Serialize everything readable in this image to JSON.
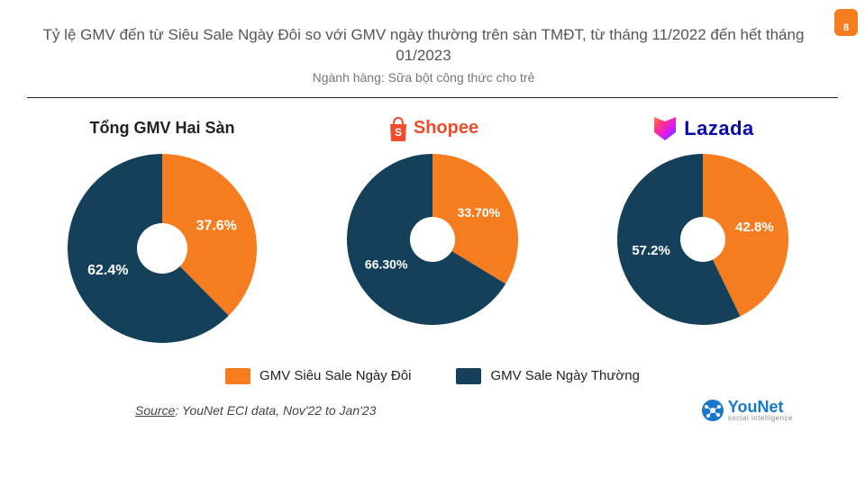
{
  "page_number": "8",
  "badge_bg": "#f57c1f",
  "title": "Tỷ lệ GMV đến từ Siêu Sale Ngày Đôi so với GMV ngày thường trên sàn TMĐT, từ tháng 11/2022 đến hết tháng 01/2023",
  "subtitle": "Ngành hàng: Sữa bột công thức cho trẻ",
  "colors": {
    "segment_a": "#f57c1f",
    "segment_b": "#14405a",
    "inner_hole": "#ffffff",
    "label_text": "#ffffff"
  },
  "charts": [
    {
      "kind": "text_header",
      "header_text": "Tổng GMV Hai Sàn",
      "radius": 105,
      "inner_radius": 28,
      "slices": [
        {
          "value": 37.6,
          "label": "37.6%",
          "color_key": "segment_a",
          "label_fontsize": 16
        },
        {
          "value": 62.4,
          "label": "62.4%",
          "color_key": "segment_b",
          "label_fontsize": 16
        }
      ]
    },
    {
      "kind": "shopee_header",
      "header_text": "Shopee",
      "radius": 95,
      "inner_radius": 25,
      "slices": [
        {
          "value": 33.7,
          "label": "33.70%",
          "color_key": "segment_a",
          "label_fontsize": 14
        },
        {
          "value": 66.3,
          "label": "66.30%",
          "color_key": "segment_b",
          "label_fontsize": 14
        }
      ]
    },
    {
      "kind": "lazada_header",
      "header_text": "Lazada",
      "radius": 95,
      "inner_radius": 25,
      "slices": [
        {
          "value": 42.8,
          "label": "42.8%",
          "color_key": "segment_a",
          "label_fontsize": 15
        },
        {
          "value": 57.2,
          "label": "57.2%",
          "color_key": "segment_b",
          "label_fontsize": 15
        }
      ]
    }
  ],
  "chart_start_angle_deg": 0,
  "label_radius_factor": 0.62,
  "legend": [
    {
      "label": "GMV Siêu Sale Ngày Đôi",
      "color_key": "segment_a"
    },
    {
      "label": "GMV Sale Ngày Thường",
      "color_key": "segment_b"
    }
  ],
  "source": {
    "label": "Source",
    "text": ": YouNet ECI data, Nov'22 to Jan'23"
  },
  "younet": {
    "main": "YouNet",
    "sub": "social intelligence",
    "accent": "#1878c9"
  },
  "shopee_brand_color": "#ee4d2d",
  "lazada_gradient": [
    "#ff7b3a",
    "#ff2e8e",
    "#d61aff",
    "#1a57ff"
  ]
}
